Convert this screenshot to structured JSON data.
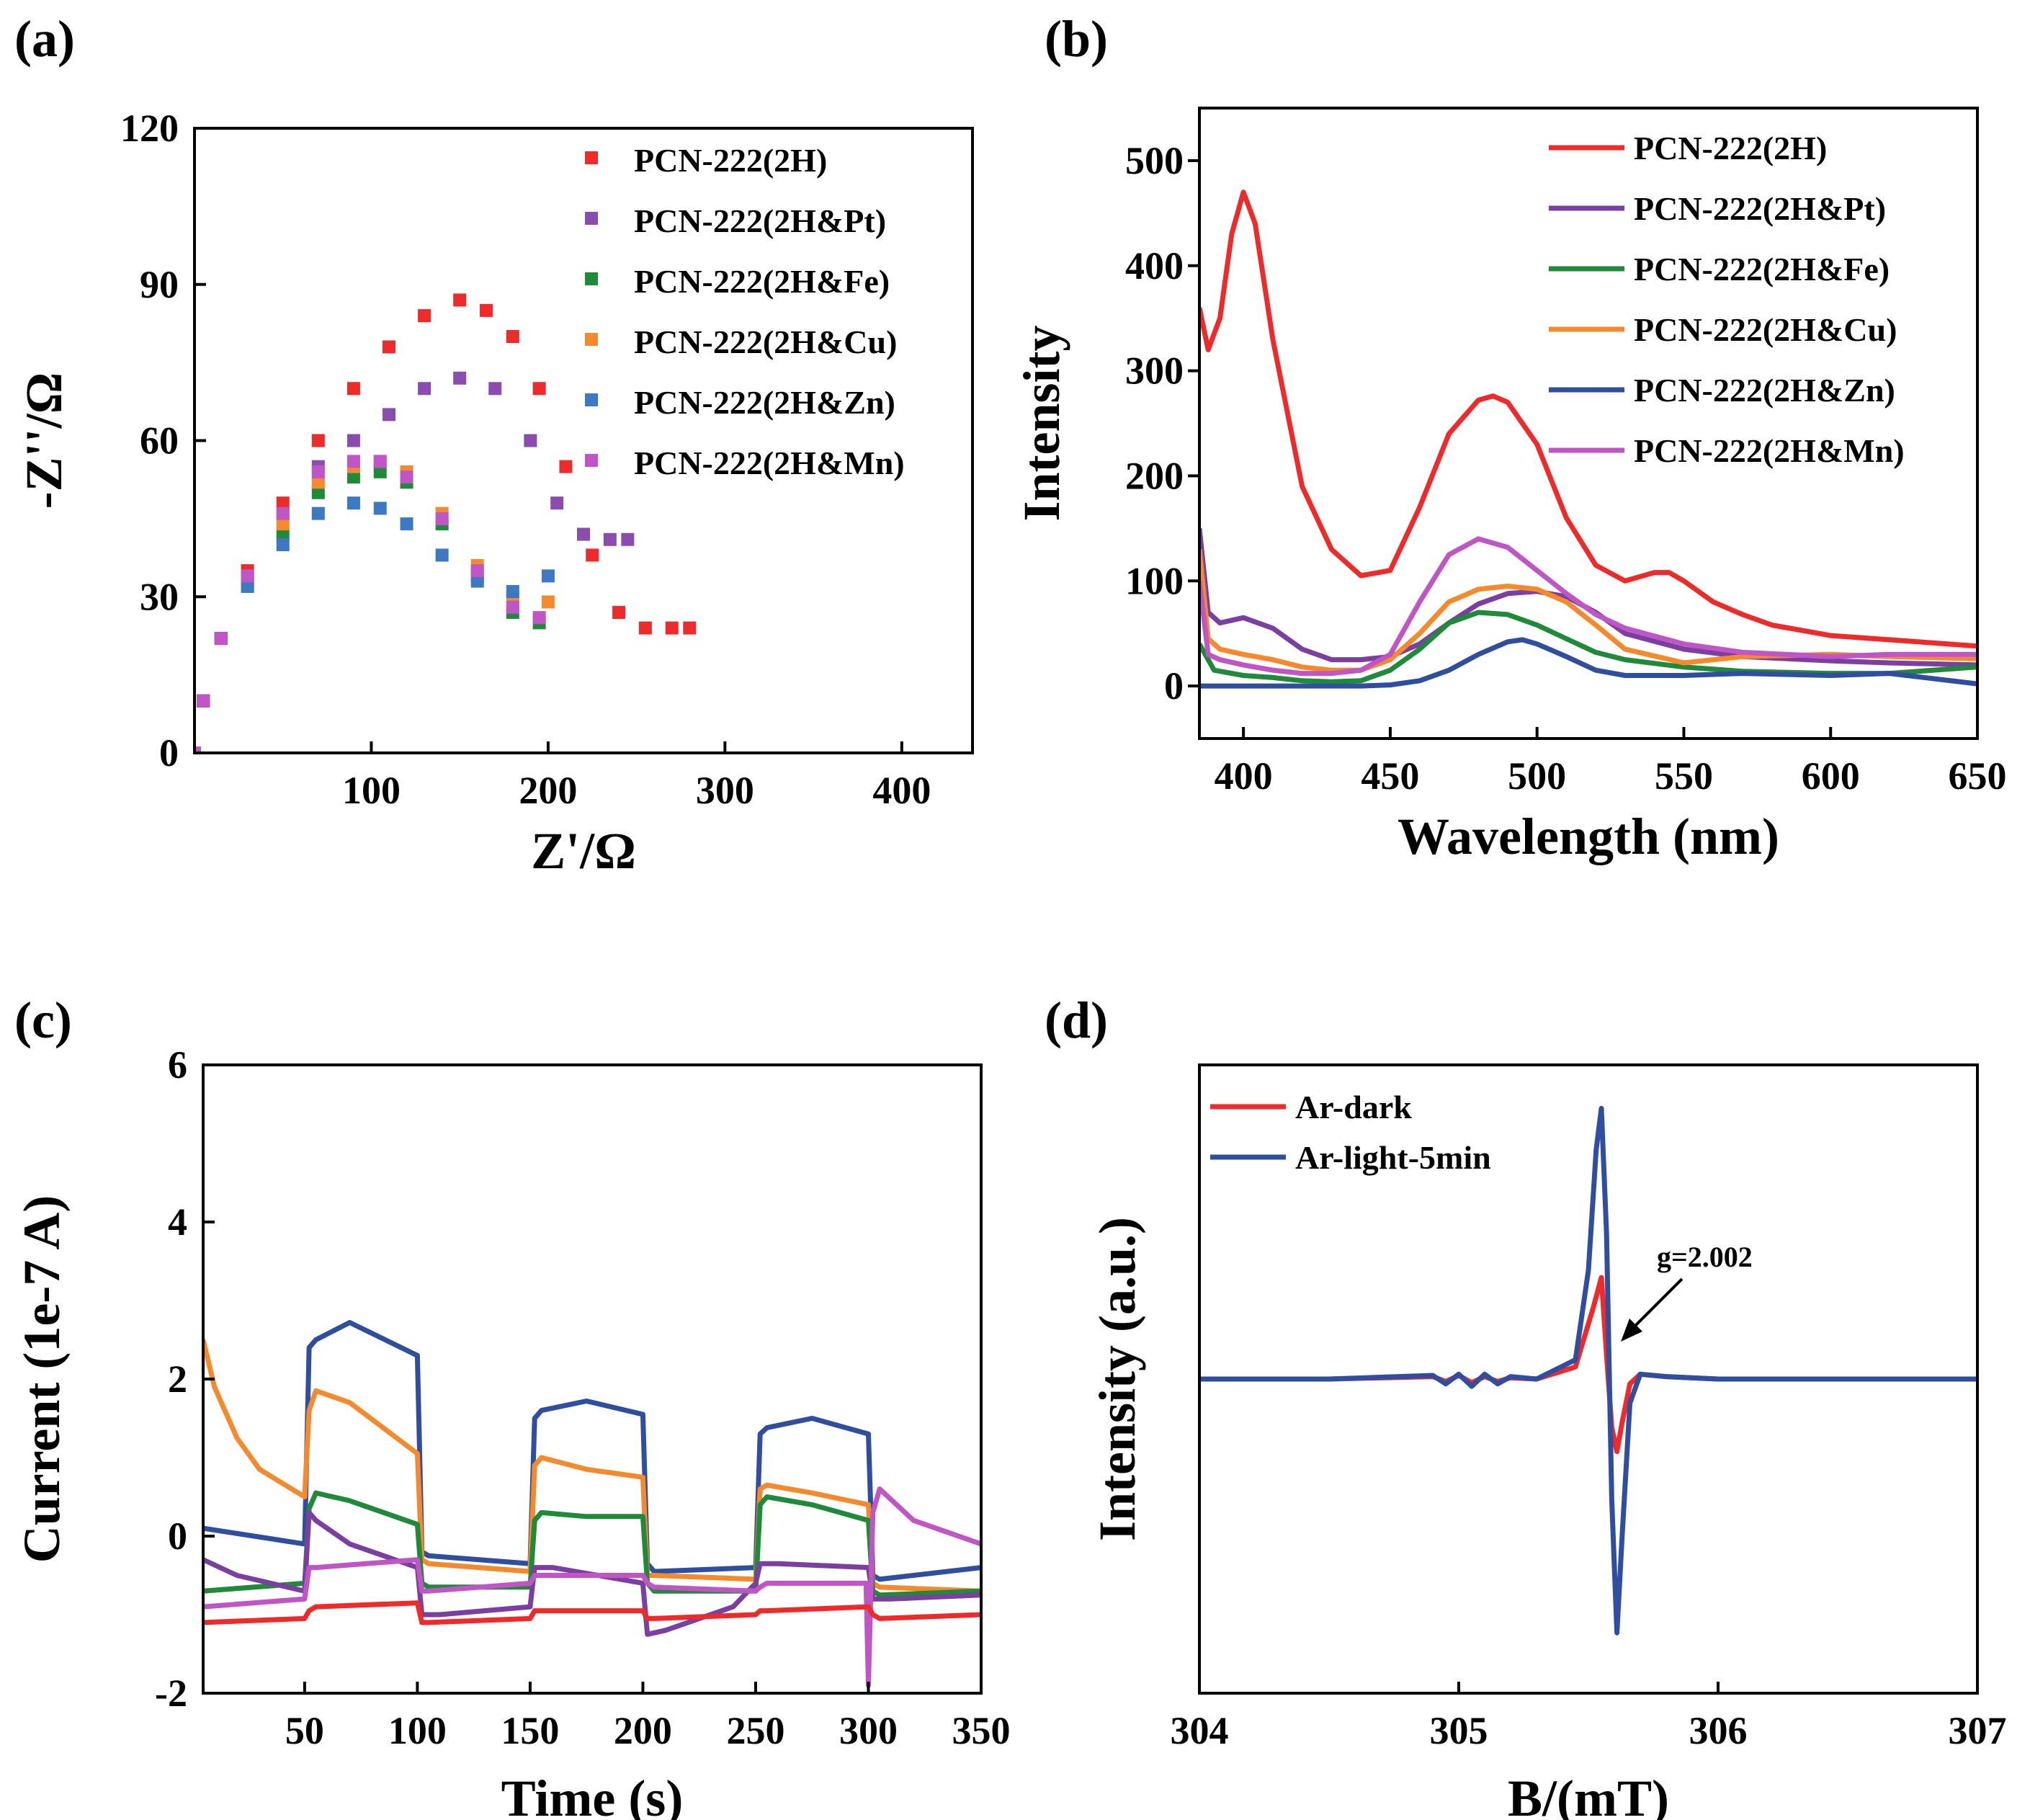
{
  "colors": {
    "red": "#ee2a2a",
    "purple": "#7a3fa0",
    "green": "#1f8a3a",
    "orange": "#f58a2c",
    "blue": "#2f4ea0",
    "magenta": "#c055c5",
    "ms_purple": "#8b4cb0",
    "ms_blue": "#3d78c3"
  },
  "chart_data": [
    {
      "panel_label": "(a)",
      "type": "scatter",
      "xlabel": "Z'/Ω",
      "ylabel": "-Z''/Ω",
      "xlim": [
        0,
        440
      ],
      "ylim": [
        0,
        120
      ],
      "xticks": [
        100,
        200,
        300,
        400
      ],
      "yticks": [
        0,
        30,
        60,
        90,
        120
      ],
      "legend_position": "top-right",
      "series": [
        {
          "name": "PCN-222(2H)",
          "color": "#ee2a2a",
          "x": [
            0,
            5,
            15,
            30,
            50,
            70,
            90,
            110,
            130,
            150,
            165,
            180,
            195,
            210,
            225,
            240,
            255,
            270,
            280
          ],
          "y": [
            0,
            10,
            22,
            35,
            48,
            60,
            70,
            78,
            84,
            87,
            85,
            80,
            70,
            55,
            38,
            27,
            24,
            24,
            24
          ]
        },
        {
          "name": "PCN-222(2H&Pt)",
          "color": "#8b4cb0",
          "x": [
            0,
            5,
            15,
            30,
            50,
            70,
            90,
            110,
            130,
            150,
            170,
            190,
            205,
            220,
            235,
            245
          ],
          "y": [
            0,
            10,
            22,
            34,
            46,
            55,
            60,
            65,
            70,
            72,
            70,
            60,
            48,
            42,
            41,
            41
          ]
        },
        {
          "name": "PCN-222(2H&Fe)",
          "color": "#1f8a3a",
          "x": [
            0,
            5,
            15,
            30,
            50,
            70,
            90,
            105,
            120,
            140,
            160,
            180,
            195
          ],
          "y": [
            0,
            10,
            22,
            32,
            42,
            50,
            53,
            54,
            52,
            44,
            34,
            27,
            25
          ]
        },
        {
          "name": "PCN-222(2H&Cu)",
          "color": "#f58a2c",
          "x": [
            0,
            5,
            15,
            30,
            50,
            70,
            90,
            105,
            120,
            140,
            160,
            180,
            200
          ],
          "y": [
            0,
            10,
            22,
            33,
            44,
            52,
            55,
            56,
            54,
            46,
            36,
            30,
            29
          ]
        },
        {
          "name": "PCN-222(2H&Zn)",
          "color": "#3d78c3",
          "x": [
            0,
            5,
            15,
            30,
            50,
            70,
            90,
            105,
            120,
            140,
            160,
            180,
            200
          ],
          "y": [
            0,
            10,
            22,
            32,
            40,
            46,
            48,
            47,
            44,
            38,
            33,
            31,
            34
          ]
        },
        {
          "name": "PCN-222(2H&Mn)",
          "color": "#c055c5",
          "x": [
            0,
            5,
            15,
            30,
            50,
            70,
            90,
            105,
            120,
            140,
            160,
            180,
            195
          ],
          "y": [
            0,
            10,
            22,
            34,
            46,
            54,
            56,
            56,
            53,
            45,
            35,
            28,
            26
          ]
        }
      ]
    },
    {
      "panel_label": "(b)",
      "type": "line",
      "xlabel": "Wavelength (nm)",
      "ylabel": "Intensity",
      "xlim": [
        385,
        650
      ],
      "ylim": [
        -50,
        550
      ],
      "xticks": [
        400,
        450,
        500,
        550,
        600,
        650
      ],
      "yticks": [
        0,
        100,
        200,
        300,
        400,
        500
      ],
      "legend_position": "top-right",
      "series": [
        {
          "name": "PCN-222(2H)",
          "color": "#ee2a2a",
          "x": [
            385,
            388,
            392,
            396,
            400,
            404,
            410,
            420,
            430,
            440,
            450,
            460,
            470,
            480,
            485,
            490,
            500,
            510,
            520,
            530,
            540,
            545,
            550,
            560,
            570,
            580,
            600,
            620,
            650
          ],
          "y": [
            360,
            320,
            350,
            430,
            470,
            440,
            330,
            190,
            130,
            105,
            110,
            170,
            240,
            272,
            276,
            270,
            230,
            160,
            115,
            100,
            108,
            108,
            100,
            80,
            68,
            58,
            48,
            44,
            38
          ]
        },
        {
          "name": "PCN-222(2H&Pt)",
          "color": "#7a3fa0",
          "x": [
            385,
            388,
            392,
            400,
            410,
            420,
            430,
            440,
            450,
            460,
            470,
            480,
            490,
            500,
            510,
            520,
            530,
            550,
            570,
            600,
            620,
            650
          ],
          "y": [
            150,
            70,
            60,
            65,
            55,
            35,
            25,
            25,
            28,
            40,
            60,
            78,
            88,
            90,
            85,
            70,
            50,
            35,
            28,
            24,
            22,
            20
          ]
        },
        {
          "name": "PCN-222(2H&Fe)",
          "color": "#1f8a3a",
          "x": [
            385,
            390,
            400,
            410,
            420,
            430,
            440,
            450,
            460,
            470,
            480,
            490,
            500,
            510,
            520,
            530,
            550,
            570,
            600,
            620,
            650
          ],
          "y": [
            40,
            15,
            10,
            8,
            5,
            4,
            5,
            15,
            35,
            60,
            70,
            68,
            58,
            45,
            32,
            25,
            18,
            14,
            12,
            12,
            18
          ]
        },
        {
          "name": "PCN-222(2H&Cu)",
          "color": "#f58a2c",
          "x": [
            385,
            388,
            392,
            400,
            410,
            420,
            430,
            440,
            450,
            460,
            470,
            480,
            490,
            500,
            510,
            520,
            530,
            550,
            570,
            600,
            620,
            650
          ],
          "y": [
            130,
            45,
            35,
            30,
            25,
            18,
            15,
            15,
            25,
            50,
            80,
            92,
            95,
            92,
            80,
            58,
            35,
            22,
            28,
            30,
            28,
            26
          ]
        },
        {
          "name": "PCN-222(2H&Zn)",
          "color": "#2f4ea0",
          "x": [
            385,
            390,
            400,
            420,
            440,
            450,
            460,
            470,
            480,
            490,
            495,
            500,
            510,
            520,
            530,
            550,
            570,
            600,
            620,
            650
          ],
          "y": [
            0,
            0,
            0,
            0,
            0,
            1,
            5,
            15,
            30,
            42,
            44,
            40,
            28,
            15,
            10,
            10,
            12,
            10,
            12,
            2
          ]
        },
        {
          "name": "PCN-222(2H&Mn)",
          "color": "#c055c5",
          "x": [
            385,
            388,
            392,
            400,
            410,
            420,
            430,
            440,
            450,
            460,
            470,
            480,
            490,
            500,
            510,
            520,
            530,
            550,
            570,
            600,
            620,
            650
          ],
          "y": [
            100,
            30,
            25,
            20,
            15,
            12,
            12,
            15,
            30,
            80,
            125,
            140,
            132,
            110,
            88,
            68,
            55,
            40,
            32,
            28,
            30,
            30
          ]
        }
      ]
    },
    {
      "panel_label": "(c)",
      "type": "line",
      "xlabel": "Time (s)",
      "ylabel": "Current (1e-7 A)",
      "xlim": [
        5,
        350
      ],
      "ylim": [
        -2,
        6
      ],
      "xticks": [
        50,
        100,
        150,
        200,
        250,
        300,
        350
      ],
      "yticks": [
        -2,
        0,
        2,
        4,
        6
      ],
      "series": [
        {
          "name": "blue",
          "color": "#2f4ea0",
          "x": [
            5,
            50,
            52,
            55,
            70,
            100,
            102,
            105,
            150,
            152,
            155,
            175,
            200,
            202,
            205,
            250,
            252,
            255,
            275,
            300,
            302,
            305,
            350
          ],
          "y": [
            0.1,
            -0.1,
            2.4,
            2.5,
            2.72,
            2.3,
            -0.2,
            -0.25,
            -0.35,
            1.5,
            1.6,
            1.72,
            1.55,
            -0.35,
            -0.45,
            -0.4,
            1.3,
            1.38,
            1.5,
            1.3,
            -0.5,
            -0.55,
            -0.4
          ]
        },
        {
          "name": "orange",
          "color": "#f58a2c",
          "x": [
            5,
            10,
            20,
            30,
            50,
            52,
            55,
            70,
            100,
            102,
            105,
            150,
            152,
            155,
            175,
            200,
            202,
            205,
            250,
            252,
            255,
            275,
            300,
            302,
            305,
            350
          ],
          "y": [
            2.5,
            1.9,
            1.25,
            0.85,
            0.5,
            1.6,
            1.85,
            1.7,
            1.05,
            -0.3,
            -0.35,
            -0.45,
            0.9,
            1.0,
            0.85,
            0.75,
            -0.5,
            -0.5,
            -0.55,
            0.6,
            0.65,
            0.55,
            0.4,
            -0.6,
            -0.65,
            -0.7
          ]
        },
        {
          "name": "green",
          "color": "#1f8a3a",
          "x": [
            5,
            50,
            52,
            55,
            70,
            100,
            102,
            105,
            150,
            152,
            155,
            175,
            200,
            202,
            205,
            250,
            252,
            255,
            275,
            300,
            302,
            305,
            350
          ],
          "y": [
            -0.7,
            -0.6,
            0.35,
            0.55,
            0.45,
            0.15,
            -0.6,
            -0.65,
            -0.65,
            0.2,
            0.3,
            0.25,
            0.25,
            -0.6,
            -0.7,
            -0.7,
            0.4,
            0.5,
            0.4,
            0.2,
            -0.7,
            -0.75,
            -0.7
          ]
        },
        {
          "name": "purple",
          "color": "#7a3fa0",
          "x": [
            5,
            20,
            50,
            52,
            55,
            70,
            100,
            102,
            110,
            150,
            152,
            160,
            200,
            202,
            210,
            240,
            250,
            252,
            260,
            300,
            302,
            310,
            350
          ],
          "y": [
            -0.3,
            -0.5,
            -0.7,
            0.3,
            0.2,
            -0.1,
            -0.4,
            -1.0,
            -1.0,
            -0.9,
            -0.4,
            -0.4,
            -0.6,
            -1.25,
            -1.2,
            -0.9,
            -0.6,
            -0.35,
            -0.35,
            -0.4,
            -0.8,
            -0.8,
            -0.75
          ]
        },
        {
          "name": "magenta",
          "color": "#c055c5",
          "x": [
            5,
            50,
            52,
            55,
            100,
            102,
            105,
            150,
            152,
            155,
            200,
            202,
            205,
            250,
            252,
            255,
            299,
            300,
            302,
            305,
            320,
            350
          ],
          "y": [
            -0.9,
            -0.8,
            -0.4,
            -0.4,
            -0.3,
            -0.7,
            -0.7,
            -0.6,
            -0.5,
            -0.5,
            -0.5,
            -0.6,
            -0.65,
            -0.7,
            -0.65,
            -0.6,
            -0.6,
            -1.9,
            0.3,
            0.6,
            0.2,
            -0.1
          ]
        },
        {
          "name": "red",
          "color": "#ee2a2a",
          "x": [
            5,
            50,
            52,
            55,
            100,
            102,
            105,
            150,
            152,
            155,
            200,
            202,
            205,
            250,
            252,
            255,
            300,
            302,
            305,
            350
          ],
          "y": [
            -1.1,
            -1.05,
            -0.95,
            -0.9,
            -0.85,
            -1.1,
            -1.1,
            -1.05,
            -0.95,
            -0.95,
            -0.95,
            -1.05,
            -1.05,
            -1.0,
            -0.95,
            -0.95,
            -0.9,
            -1.0,
            -1.05,
            -1.0
          ]
        }
      ]
    },
    {
      "panel_label": "(d)",
      "type": "line",
      "xlabel": "B/(mT)",
      "ylabel": "Intensity (a.u.)",
      "xlim": [
        304,
        307
      ],
      "ylim": [
        -1.3,
        1.3
      ],
      "xticks": [
        304,
        305,
        306,
        307
      ],
      "yticks": [],
      "legend_position": "top-left",
      "annotation": "g=2.002",
      "series": [
        {
          "name": "Ar-dark",
          "color": "#ee2a2a",
          "x": [
            304,
            304.5,
            304.9,
            304.95,
            305,
            305.05,
            305.1,
            305.15,
            305.2,
            305.3,
            305.45,
            305.52,
            305.55,
            305.57,
            305.59,
            305.61,
            305.63,
            305.66,
            305.7,
            305.8,
            306,
            306.5,
            307
          ],
          "y": [
            0,
            0,
            0.01,
            -0.01,
            0.015,
            -0.015,
            0.01,
            -0.01,
            0.005,
            0,
            0.05,
            0.3,
            0.42,
            0.1,
            -0.2,
            -0.3,
            -0.18,
            -0.02,
            0.02,
            0.01,
            0,
            0,
            0
          ]
        },
        {
          "name": "Ar-light-5min",
          "color": "#2f4ea0",
          "x": [
            304,
            304.5,
            304.9,
            304.95,
            305,
            305.05,
            305.1,
            305.15,
            305.2,
            305.3,
            305.45,
            305.5,
            305.53,
            305.55,
            305.57,
            305.59,
            305.61,
            305.63,
            305.66,
            305.7,
            305.8,
            306,
            306.5,
            307
          ],
          "y": [
            0,
            0,
            0.015,
            -0.02,
            0.02,
            -0.03,
            0.02,
            -0.02,
            0.01,
            0,
            0.08,
            0.45,
            0.95,
            1.12,
            0.6,
            -0.5,
            -1.05,
            -0.65,
            -0.1,
            0.02,
            0.01,
            0,
            0,
            0
          ]
        }
      ]
    }
  ]
}
